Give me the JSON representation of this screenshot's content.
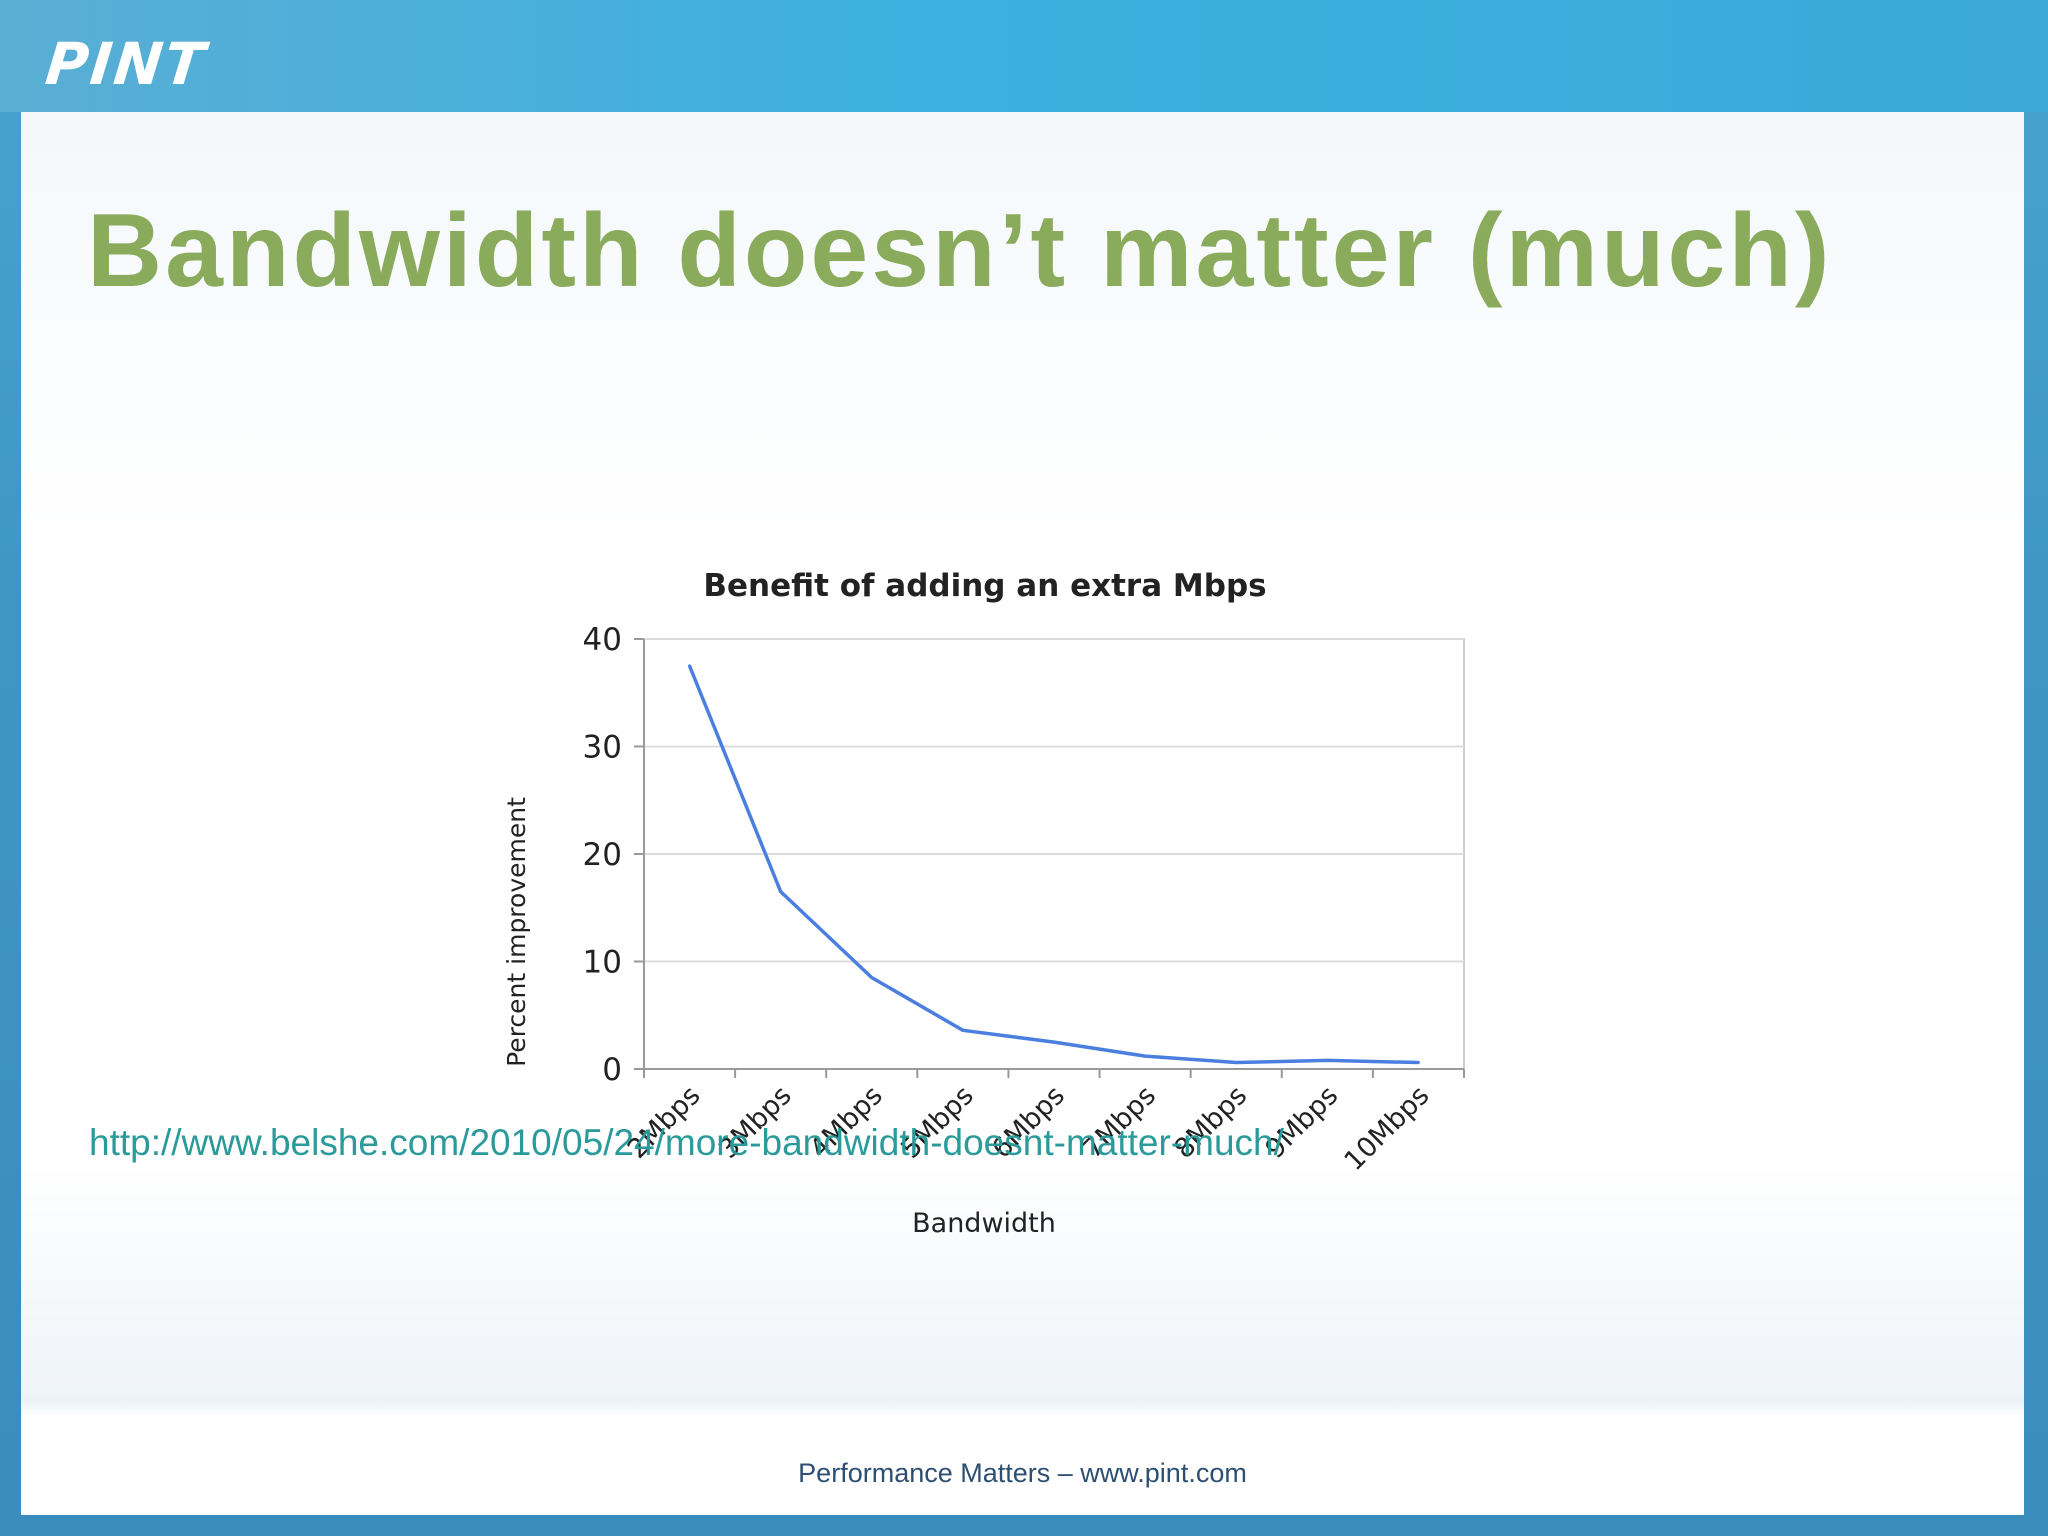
{
  "header": {
    "logo_text": "PINT"
  },
  "slide": {
    "title": "Bandwidth doesn’t matter (much)",
    "link": "http://www.belshe.com/2010/05/24/more-bandwidth-doesnt-matter-much/",
    "footer": "Performance Matters – www.pint.com"
  },
  "colors": {
    "title": "#8aab5c",
    "line": "#4a7fe0",
    "link": "#2a9a9a",
    "topbar": "#3cb0e0"
  },
  "chart_data": {
    "type": "line",
    "title": "Benefit of adding an extra Mbps",
    "xlabel": "Bandwidth",
    "ylabel": "Percent improvement",
    "categories": [
      "2Mbps",
      "3Mbps",
      "4Mbps",
      "5Mbps",
      "6Mbps",
      "7Mbps",
      "8Mbps",
      "9Mbps",
      "10Mbps"
    ],
    "series": [
      {
        "values": [
          37.5,
          16.5,
          8.5,
          3.6,
          2.5,
          1.2,
          0.6,
          0.8,
          0.6
        ]
      }
    ],
    "yticks": [
      0,
      10,
      20,
      30,
      40
    ],
    "ylim": [
      0,
      40
    ],
    "grid": true,
    "legend": "none"
  }
}
